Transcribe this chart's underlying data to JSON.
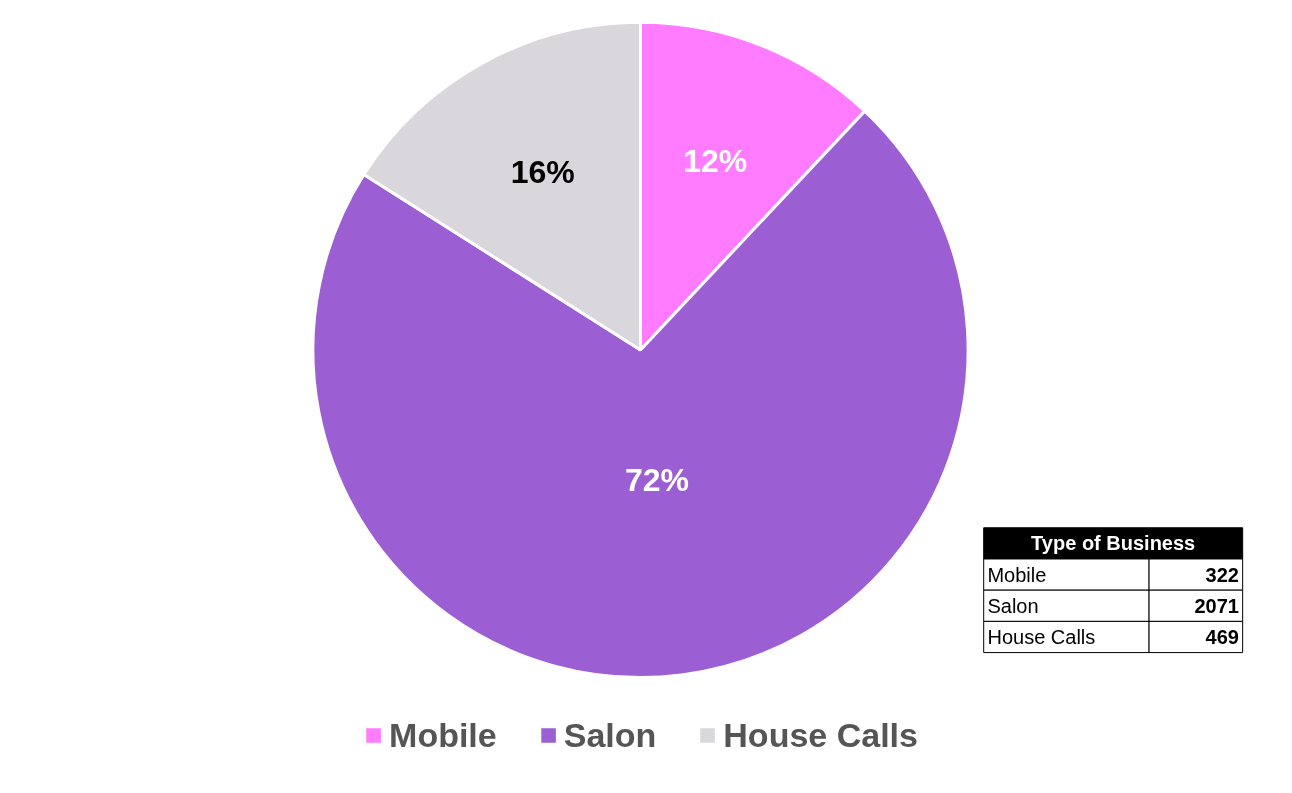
{
  "chart_data": [
    {
      "type": "pie",
      "categories": [
        "Mobile",
        "Salon",
        "House Calls"
      ],
      "values": [
        12,
        72,
        16
      ],
      "colors": [
        "#ff7bff",
        "#9b5fd3",
        "#d9d7dc"
      ],
      "value_labels": [
        "12%",
        "72%",
        "16%"
      ],
      "legend": "bottom"
    },
    {
      "type": "other",
      "title": "Type of Business",
      "categories": [
        "Mobile",
        "Salon",
        "House Calls"
      ],
      "values": [
        322,
        2071,
        469
      ],
      "data_labels": true
    }
  ]
}
